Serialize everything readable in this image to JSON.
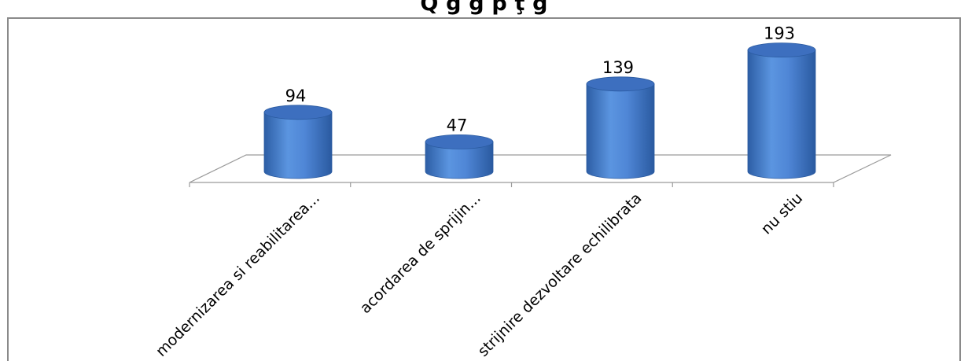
{
  "title": "Q… … g … g … p ţ … g …",
  "title_visible": "Q                    g                 g        p  ţ       g",
  "chart_data": {
    "type": "bar",
    "style": "3d-cylinder",
    "categories": [
      "modernizarea si reabilitarea...",
      "acordarea de sprijin...",
      "strijnire dezvoltare echilibrata",
      "nu stiu"
    ],
    "values": [
      94,
      47,
      139,
      193
    ],
    "ylim": [
      0,
      200
    ],
    "grid": false,
    "legend": "none",
    "bar_color": "#4f86d6",
    "bar_dark": "#2b5fa8",
    "bar_top": "#3d6fbf"
  }
}
